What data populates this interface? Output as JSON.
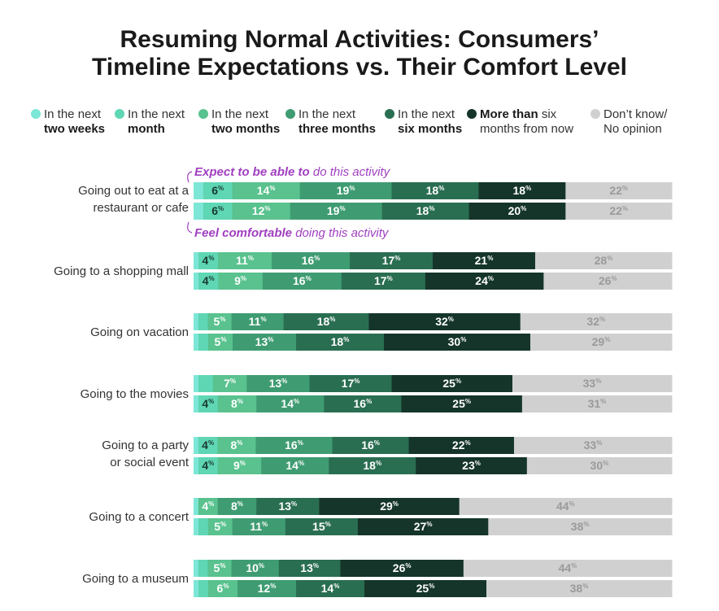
{
  "chart_data": {
    "type": "bar",
    "orientation": "horizontal",
    "stacked": true,
    "title_lines": [
      "Resuming Normal Activities: Consumers’",
      "Timeline Expectations vs. Their Comfort Level"
    ],
    "legend": [
      {
        "plain": "In the next",
        "bold": "two weeks",
        "color": "#7de6d6"
      },
      {
        "plain": "In the next",
        "bold": "month",
        "color": "#5fd6b4"
      },
      {
        "plain": "In the next",
        "bold": "two months",
        "color": "#59c28e"
      },
      {
        "plain": "In the next",
        "bold": "three months",
        "color": "#3f9c72"
      },
      {
        "plain": "In the next",
        "bold": "six months",
        "color": "#2a6e52"
      },
      {
        "bold": "More than",
        "plain": "six",
        "plain2": "months from now",
        "color": "#15352a"
      },
      {
        "plain": "Don’t know/",
        "plain2": "No opinion",
        "color": "#d0d0d0"
      }
    ],
    "annotations": {
      "expect_bold": "Expect to be able to",
      "expect_rest": " do this activity",
      "comfort_bold": "Feel comfortable",
      "comfort_rest": " doing this activity"
    },
    "percent_sign": "%",
    "categories": [
      {
        "label_lines": [
          "Going out to eat at a",
          "restaurant or cafe"
        ],
        "expect": [
          2,
          6,
          14,
          19,
          18,
          18,
          22
        ],
        "comfort": [
          2,
          6,
          12,
          19,
          18,
          20,
          22
        ]
      },
      {
        "label_lines": [
          "Going to a shopping mall"
        ],
        "expect": [
          1,
          4,
          11,
          16,
          17,
          21,
          28
        ],
        "comfort": [
          1,
          4,
          9,
          16,
          17,
          24,
          26
        ]
      },
      {
        "label_lines": [
          "Going on vacation"
        ],
        "expect": [
          1,
          2,
          5,
          11,
          18,
          32,
          32
        ],
        "comfort": [
          1,
          2,
          5,
          13,
          18,
          30,
          29
        ]
      },
      {
        "label_lines": [
          "Going to the movies"
        ],
        "expect": [
          1,
          3,
          7,
          13,
          17,
          25,
          33
        ],
        "comfort": [
          1,
          4,
          8,
          14,
          16,
          25,
          31
        ]
      },
      {
        "label_lines": [
          "Going to a party",
          "or social event"
        ],
        "expect": [
          1,
          4,
          8,
          16,
          16,
          22,
          33
        ],
        "comfort": [
          1,
          4,
          9,
          14,
          18,
          23,
          30
        ]
      },
      {
        "label_lines": [
          "Going to a concert"
        ],
        "expect": [
          1,
          4,
          8,
          13,
          29,
          44
        ],
        "comfort": [
          1,
          2,
          5,
          11,
          15,
          27,
          38
        ]
      },
      {
        "label_lines": [
          "Going to a museum"
        ],
        "expect": [
          1,
          2,
          5,
          10,
          13,
          26,
          44
        ],
        "comfort": [
          1,
          2,
          6,
          12,
          14,
          25,
          38
        ]
      }
    ],
    "series_colors_by_category": [
      [
        "#7de6d6",
        "#5fd6b4",
        "#59c28e",
        "#3f9c72",
        "#2a6e52",
        "#15352a",
        "#d0d0d0"
      ],
      [
        "#7de6d6",
        "#5fd6b4",
        "#59c28e",
        "#3f9c72",
        "#2a6e52",
        "#15352a",
        "#d0d0d0"
      ],
      [
        "#7de6d6",
        "#5fd6b4",
        "#59c28e",
        "#3f9c72",
        "#2a6e52",
        "#15352a",
        "#d0d0d0"
      ],
      [
        "#7de6d6",
        "#5fd6b4",
        "#59c28e",
        "#3f9c72",
        "#2a6e52",
        "#15352a",
        "#d0d0d0"
      ],
      [
        "#7de6d6",
        "#5fd6b4",
        "#59c28e",
        "#3f9c72",
        "#2a6e52",
        "#15352a",
        "#d0d0d0"
      ],
      [
        "#7de6d6",
        "#59c28e",
        "#3f9c72",
        "#2a6e52",
        "#15352a",
        "#d0d0d0"
      ],
      [
        "#7de6d6",
        "#5fd6b4",
        "#59c28e",
        "#3f9c72",
        "#2a6e52",
        "#15352a",
        "#d0d0d0"
      ]
    ],
    "comfort_colors": [
      "#7de6d6",
      "#5fd6b4",
      "#59c28e",
      "#3f9c72",
      "#2a6e52",
      "#15352a",
      "#d0d0d0"
    ],
    "label_min_value": 4,
    "annotation_color": "#a040c0"
  }
}
